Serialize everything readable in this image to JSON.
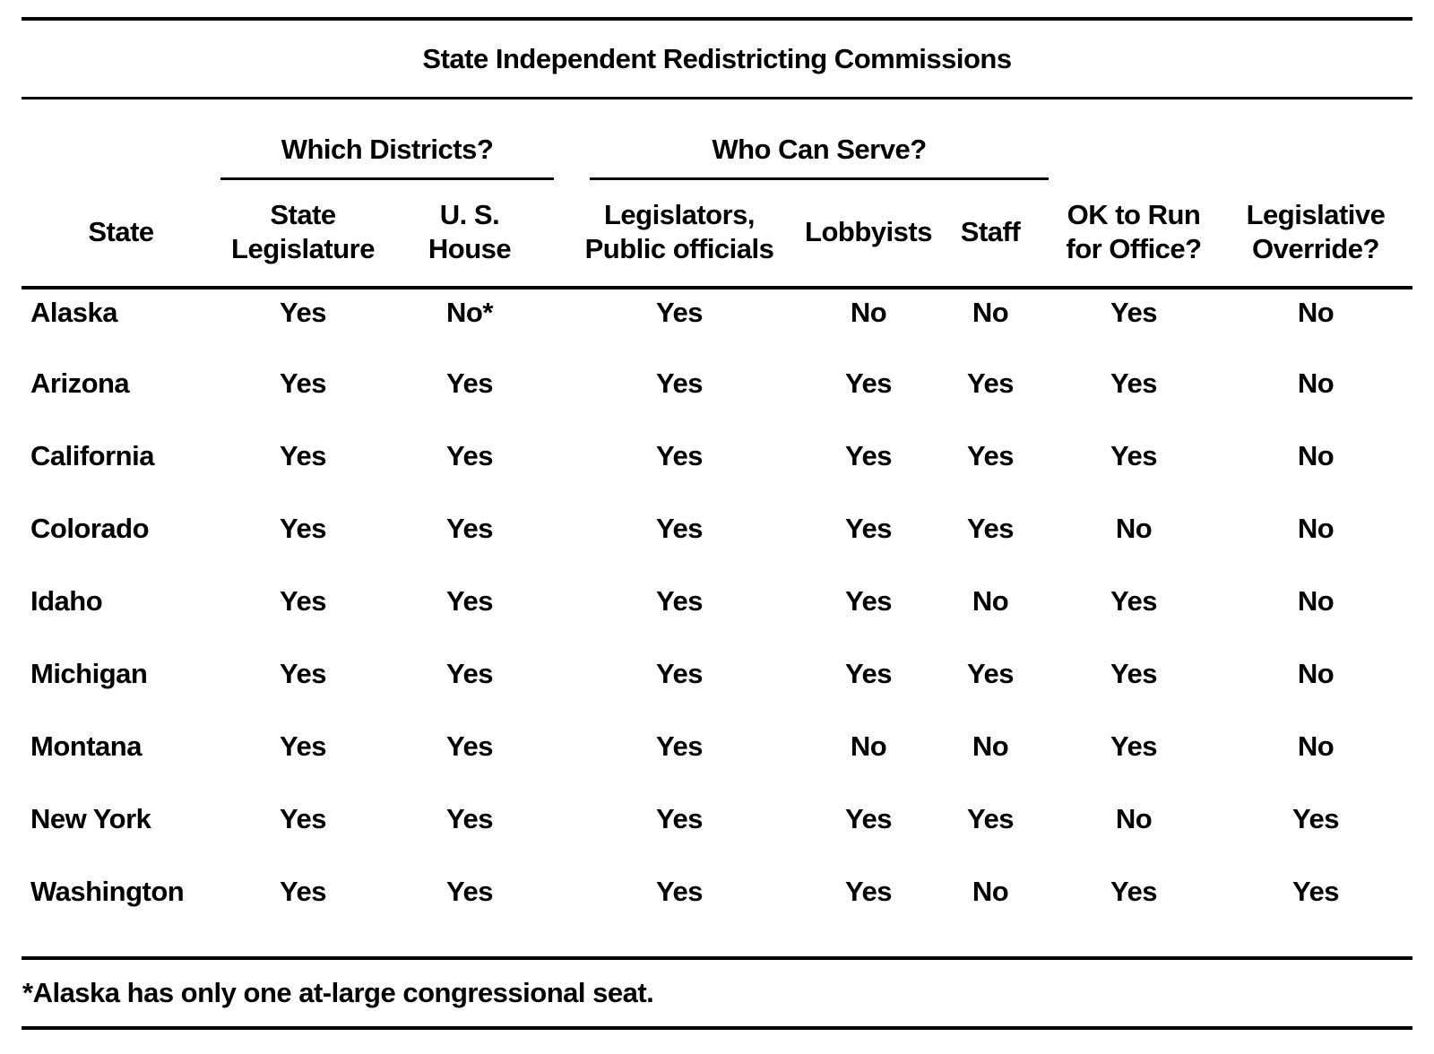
{
  "title": "State Independent Redistricting Commissions",
  "group_headers": {
    "which_districts": "Which Districts?",
    "who_can_serve": "Who Can Serve?"
  },
  "columns": {
    "state": "State",
    "state_legislature": "State\nLegislature",
    "us_house": "U. S.\nHouse",
    "legislators_public_officials": "Legislators,\nPublic officials",
    "lobbyists": "Lobbyists",
    "staff": "Staff",
    "ok_to_run": "OK to Run\nfor Office?",
    "legislative_override": "Legislative\nOverride?"
  },
  "rows": [
    {
      "state": "Alaska",
      "values": [
        "Yes",
        "No*",
        "Yes",
        "No",
        "No",
        "Yes",
        "No"
      ]
    },
    {
      "state": "Arizona",
      "values": [
        "Yes",
        "Yes",
        "Yes",
        "Yes",
        "Yes",
        "Yes",
        "No"
      ]
    },
    {
      "state": "California",
      "values": [
        "Yes",
        "Yes",
        "Yes",
        "Yes",
        "Yes",
        "Yes",
        "No"
      ]
    },
    {
      "state": "Colorado",
      "values": [
        "Yes",
        "Yes",
        "Yes",
        "Yes",
        "Yes",
        "No",
        "No"
      ]
    },
    {
      "state": "Idaho",
      "values": [
        "Yes",
        "Yes",
        "Yes",
        "Yes",
        "No",
        "Yes",
        "No"
      ]
    },
    {
      "state": "Michigan",
      "values": [
        "Yes",
        "Yes",
        "Yes",
        "Yes",
        "Yes",
        "Yes",
        "No"
      ]
    },
    {
      "state": "Montana",
      "values": [
        "Yes",
        "Yes",
        "Yes",
        "No",
        "No",
        "Yes",
        "No"
      ]
    },
    {
      "state": "New York",
      "values": [
        "Yes",
        "Yes",
        "Yes",
        "Yes",
        "Yes",
        "No",
        "Yes"
      ]
    },
    {
      "state": "Washington",
      "values": [
        "Yes",
        "Yes",
        "Yes",
        "Yes",
        "No",
        "Yes",
        "Yes"
      ]
    }
  ],
  "footnote": "*Alaska has only one at-large congressional seat.",
  "colors": {
    "text": "#000000",
    "background": "#ffffff",
    "rule": "#000000"
  }
}
